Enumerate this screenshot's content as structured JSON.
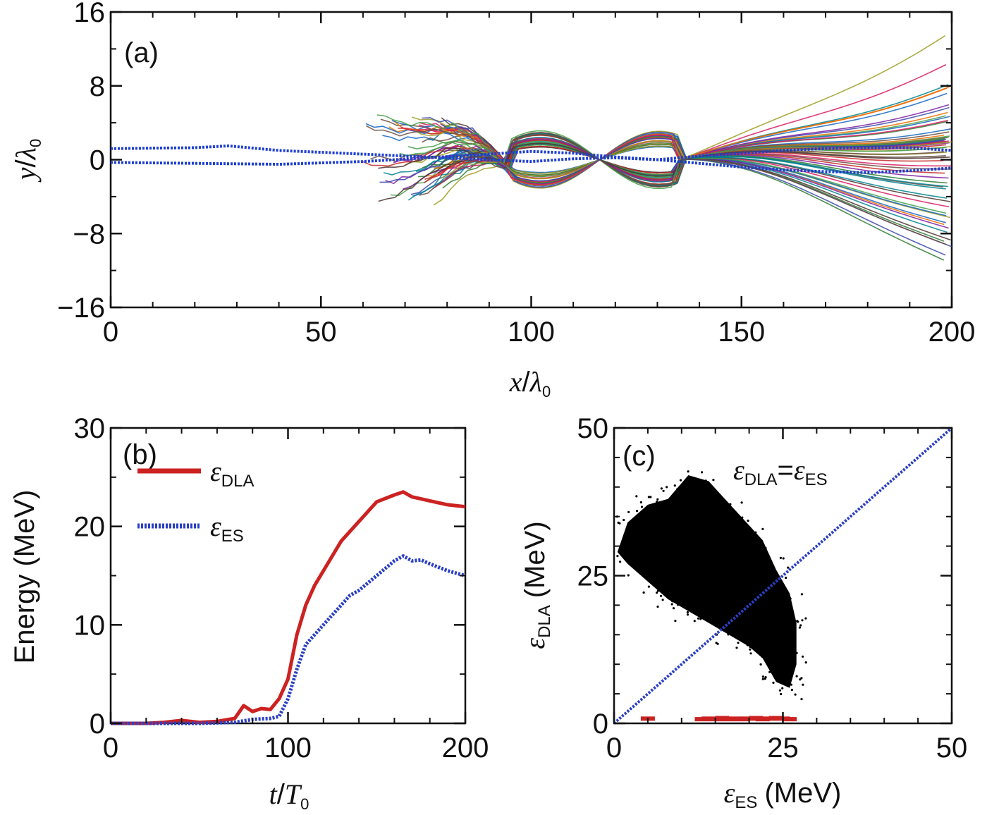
{
  "chart_data": [
    {
      "panel": "(a)",
      "type": "line",
      "xlabel": {
        "base": "x",
        "sep": "/",
        "sym": "λ",
        "sub": "0"
      },
      "ylabel": {
        "base": "y",
        "sep": "/",
        "sym": "λ",
        "sub": "0"
      },
      "xlim": [
        0,
        200
      ],
      "ylim": [
        -16,
        16
      ],
      "xticks": [
        "0",
        "50",
        "100",
        "150",
        "200"
      ],
      "yticks": [
        "16",
        "8",
        "0",
        "−8",
        "−16"
      ],
      "xtick_values": [
        0,
        50,
        100,
        150,
        200
      ],
      "ytick_values": [
        16,
        8,
        0,
        -8,
        -16
      ],
      "colors": [
        "#2e7d32",
        "#c62828",
        "#1565c0",
        "#7b1fa2",
        "#ef6c00",
        "#00838f",
        "#9e9d24",
        "#4e342e",
        "#d81b60",
        "#43a047",
        "#3949ab",
        "#6d4c41"
      ],
      "dotted_series": [
        {
          "x": [
            0,
            20,
            28,
            40,
            50,
            60,
            75,
            90,
            100,
            110,
            120,
            130,
            140,
            150,
            160,
            170,
            180,
            190,
            200
          ],
          "y": [
            1.2,
            1.3,
            1.5,
            1.0,
            0.8,
            0.6,
            0.3,
            0.0,
            -0.2,
            0.1,
            0.2,
            0.0,
            0.4,
            0.7,
            1.0,
            1.2,
            1.3,
            1.3,
            1.0
          ],
          "color": "#1f3fcf"
        },
        {
          "x": [
            0,
            20,
            40,
            60,
            75,
            90,
            100,
            110,
            120,
            130,
            140,
            150,
            160,
            170,
            180,
            190,
            200
          ],
          "y": [
            -0.3,
            -0.4,
            -0.5,
            -0.2,
            0.2,
            0.6,
            0.9,
            0.7,
            0.3,
            0.0,
            -0.4,
            -0.8,
            -1.1,
            -1.3,
            -1.4,
            -1.2,
            -0.9
          ],
          "color": "#1f3fcf"
        }
      ]
    },
    {
      "panel": "(b)",
      "type": "line",
      "xlabel": {
        "base": "t",
        "sep": "/",
        "sym": "T",
        "sub": "0"
      },
      "ylabel": "Energy (MeV)",
      "xlim": [
        0,
        200
      ],
      "ylim": [
        0,
        30
      ],
      "xticks": [
        "0",
        "100",
        "200"
      ],
      "yticks": [
        "30",
        "20",
        "10",
        "0"
      ],
      "xtick_values": [
        0,
        100,
        200
      ],
      "ytick_values": [
        30,
        20,
        10,
        0
      ],
      "legend_position": "top-left",
      "series": [
        {
          "name_sym": "ε",
          "name_sub": "DLA",
          "color": "#cc2222",
          "style": "solid",
          "x": [
            0,
            20,
            30,
            40,
            45,
            50,
            60,
            70,
            75,
            80,
            85,
            90,
            95,
            100,
            105,
            110,
            115,
            120,
            130,
            140,
            150,
            160,
            165,
            170,
            175,
            180,
            190,
            200
          ],
          "y": [
            0,
            0,
            0.1,
            0.3,
            0.2,
            0.1,
            0.2,
            0.5,
            1.8,
            1.2,
            1.5,
            1.4,
            2.5,
            4.5,
            9,
            12,
            14,
            15.5,
            18.5,
            20.5,
            22.5,
            23.2,
            23.5,
            23.0,
            22.8,
            22.6,
            22.2,
            22.0
          ]
        },
        {
          "name_sym": "ε",
          "name_sub": "ES",
          "color": "#2a3fc4",
          "style": "dotted",
          "x": [
            0,
            50,
            70,
            80,
            90,
            95,
            100,
            105,
            110,
            115,
            120,
            130,
            135,
            140,
            150,
            160,
            165,
            170,
            175,
            180,
            190,
            200
          ],
          "y": [
            0,
            0,
            0.1,
            0.4,
            0.5,
            0.7,
            2.5,
            5.5,
            8,
            9,
            10,
            12,
            13,
            13.5,
            15,
            16.5,
            17,
            16.5,
            16.6,
            16.2,
            15.5,
            15.0
          ]
        }
      ]
    },
    {
      "panel": "(c)",
      "type": "scatter",
      "xlabel": {
        "sym": "ε",
        "sub": "ES",
        "unit": "(MeV)"
      },
      "ylabel": {
        "sym": "ε",
        "sub": "DLA",
        "unit": "(MeV)"
      },
      "xlim": [
        0,
        50
      ],
      "ylim": [
        0,
        50
      ],
      "xticks": [
        "0",
        "25",
        "50"
      ],
      "yticks": [
        "50",
        "25",
        "0"
      ],
      "xtick_values": [
        0,
        25,
        50
      ],
      "ytick_values": [
        50,
        25,
        0
      ],
      "annotation": {
        "lhs_sym": "ε",
        "lhs_sub": "DLA",
        "eq": "=",
        "rhs_sym": "ε",
        "rhs_sub": "ES"
      },
      "reference_line": {
        "x": [
          0,
          50
        ],
        "y": [
          0,
          50
        ],
        "color": "#2a3fc4",
        "style": "dotted"
      },
      "cloud_polygon": {
        "x": [
          0.5,
          2,
          5,
          8,
          11,
          14,
          18,
          22,
          24,
          26,
          27,
          27,
          26,
          24,
          22,
          20,
          17,
          14,
          11,
          8,
          5,
          2
        ],
        "y": [
          29,
          34,
          37,
          38,
          42,
          41,
          36,
          31,
          26,
          22,
          17,
          10,
          6,
          7,
          11,
          13,
          15,
          17,
          19,
          21,
          24,
          27
        ]
      },
      "red_marks": {
        "x": [
          5,
          13,
          14,
          15,
          16,
          17,
          18,
          19,
          20,
          21,
          22,
          23,
          24,
          25,
          26
        ],
        "y": [
          0.8,
          0.7,
          0.8,
          0.7,
          0.9,
          0.7,
          0.8,
          0.7,
          0.8,
          0.9,
          0.7,
          0.8,
          0.9,
          0.8,
          0.7
        ],
        "color": "#cc2222"
      },
      "point_color": "#000000"
    }
  ]
}
